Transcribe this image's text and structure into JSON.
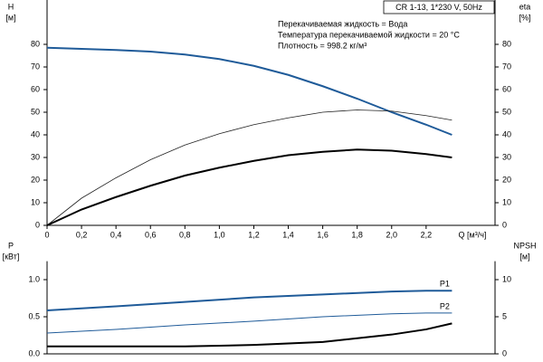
{
  "chart_data": [
    {
      "type": "line",
      "info_box": "CR 1-13, 1*230 V, 50Hz",
      "annotations": [
        "Перекачиваемая жидкость = Вода",
        "Температура перекачиваемой жидкости = 20 °C",
        "Плотность = 998.2 кг/м³"
      ],
      "ylabel": "H",
      "yunit": "[м]",
      "y2label": "eta",
      "y2unit": "[%]",
      "xlabel": "Q [м³/ч]",
      "x": [
        0,
        0.2,
        0.4,
        0.6,
        0.8,
        1.0,
        1.2,
        1.4,
        1.6,
        1.8,
        2.0,
        2.2,
        2.35
      ],
      "xlim": [
        0,
        2.6
      ],
      "xticks": [
        0,
        {
          "value": 0.2,
          "label": "0,2"
        },
        {
          "value": 0.4,
          "label": "0,4"
        },
        {
          "value": 0.6,
          "label": "0,6"
        },
        {
          "value": 0.8,
          "label": "0,8"
        },
        {
          "value": 1.0,
          "label": "1,0"
        },
        {
          "value": 1.2,
          "label": "1,2"
        },
        {
          "value": 1.4,
          "label": "1,4"
        },
        {
          "value": 1.6,
          "label": "1,6"
        },
        {
          "value": 1.8,
          "label": "1,8"
        },
        {
          "value": 2.0,
          "label": "2,0"
        },
        {
          "value": 2.2,
          "label": "2,2"
        }
      ],
      "ylim": [
        0,
        98
      ],
      "yticks": [
        0,
        10,
        20,
        30,
        40,
        50,
        60,
        70,
        80
      ],
      "y2lim": [
        0,
        98
      ],
      "y2ticks": [
        0,
        10,
        20,
        30,
        40,
        50,
        60,
        70,
        80
      ],
      "series": [
        {
          "color": "#1f5b99",
          "line_width": 2,
          "values": [
            78.5,
            78,
            77.5,
            76.8,
            75.5,
            73.5,
            70.5,
            66.5,
            61.5,
            56,
            50,
            44.5,
            40
          ]
        },
        {
          "color": "#222222",
          "line_width": 0.8,
          "axis": "y2",
          "values": [
            0,
            12,
            21,
            29,
            35.5,
            40.5,
            44.5,
            47.5,
            50,
            51,
            50.5,
            48.5,
            46.5
          ]
        },
        {
          "color": "#000000",
          "line_width": 2,
          "axis": "y2",
          "values": [
            0,
            7,
            12.5,
            17.5,
            22,
            25.5,
            28.5,
            31,
            32.5,
            33.5,
            33,
            31.5,
            30
          ]
        }
      ]
    },
    {
      "type": "line",
      "ylabel": "P",
      "yunit": "[кВт]",
      "y2label": "NPSH",
      "y2unit": "[м]",
      "x": [
        0,
        0.4,
        0.8,
        1.2,
        1.6,
        2.0,
        2.2,
        2.35
      ],
      "xlim": [
        0,
        2.6
      ],
      "ylim": [
        0,
        1.2
      ],
      "yticks": [
        {
          "value": 0,
          "label": "0.0"
        },
        0.5,
        {
          "value": 1,
          "label": "1.0"
        }
      ],
      "y2lim": [
        0,
        12
      ],
      "y2ticks": [
        0,
        5,
        10
      ],
      "series": [
        {
          "name": "P1",
          "color": "#1f5b99",
          "line_width": 2,
          "values": [
            0.585,
            0.64,
            0.7,
            0.76,
            0.8,
            0.84,
            0.85,
            0.85
          ]
        },
        {
          "name": "P2",
          "color": "#1f5b99",
          "line_width": 1,
          "values": [
            0.28,
            0.33,
            0.39,
            0.44,
            0.5,
            0.54,
            0.55,
            0.55
          ]
        },
        {
          "color": "#000000",
          "line_width": 2,
          "axis": "y2",
          "values": [
            1.0,
            1.0,
            1.0,
            1.2,
            1.6,
            2.6,
            3.3,
            4.1
          ]
        }
      ]
    }
  ]
}
